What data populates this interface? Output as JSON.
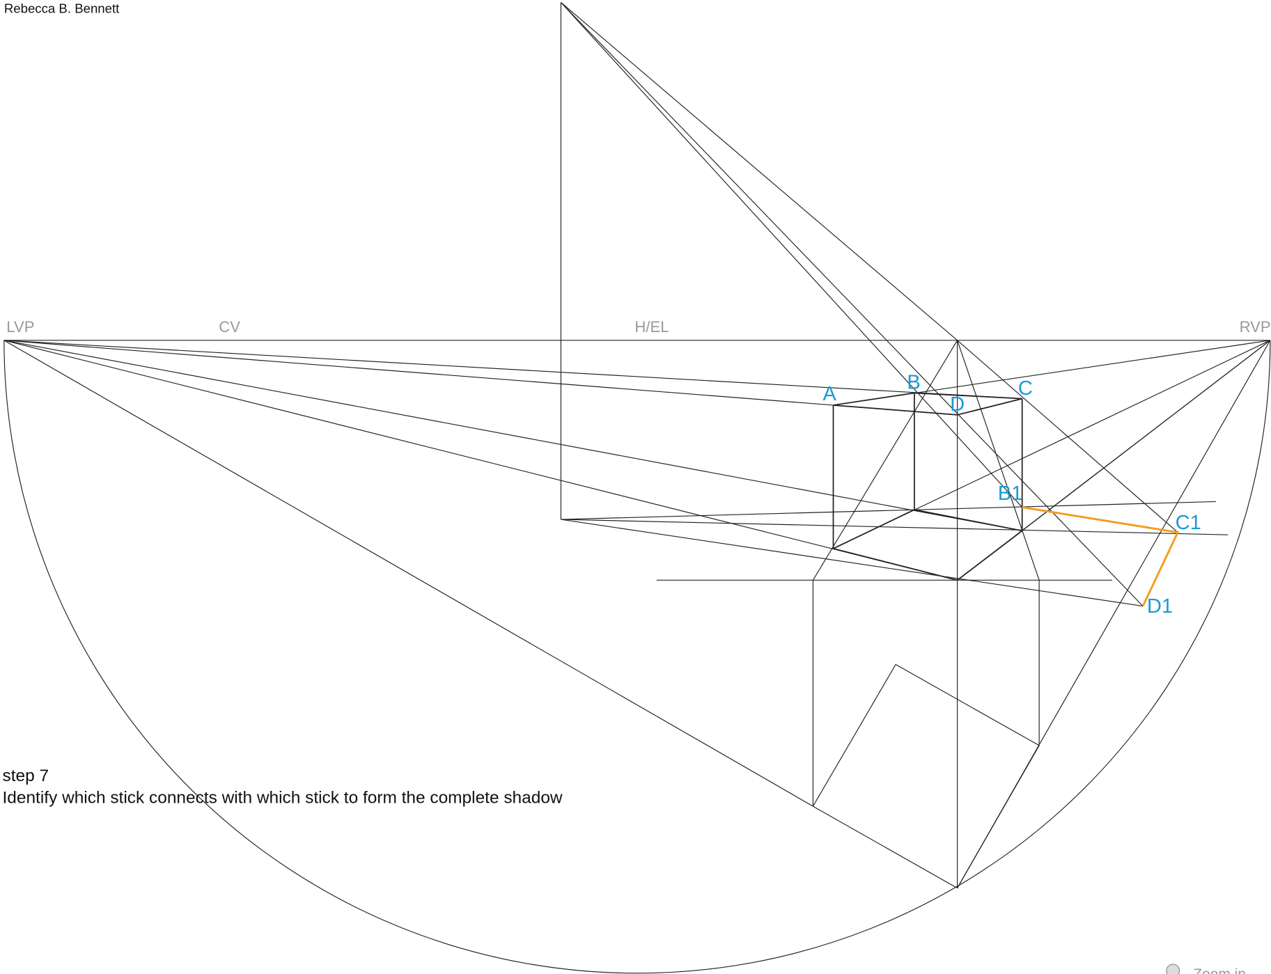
{
  "author": "Rebecca B. Bennett",
  "labels": {
    "lvp": "LVP",
    "cv": "CV",
    "hel": "H/EL",
    "rvp": "RVP"
  },
  "points": {
    "a": "A",
    "b": "B",
    "c": "C",
    "d": "D",
    "b1": "B1",
    "c1": "C1",
    "d1": "D1"
  },
  "step": {
    "title": "step 7",
    "text": "Identify which stick connects with which stick to form the complete shadow"
  },
  "zoom": "Zoom in"
}
